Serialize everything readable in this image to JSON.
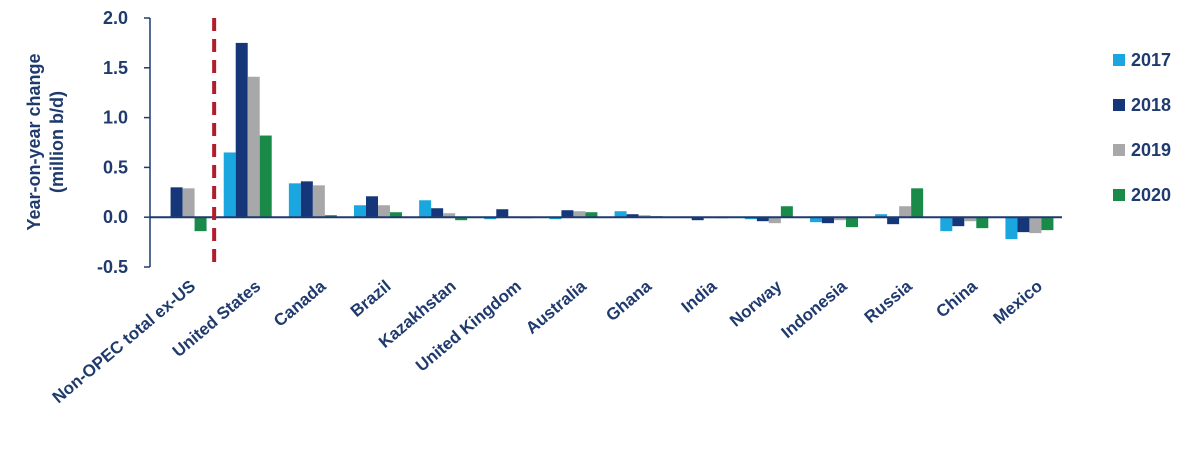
{
  "chart_data": {
    "type": "bar",
    "ylabel": "Year-on-year change",
    "ylabel_unit": "(million b/d)",
    "ylim": [
      -0.5,
      2.0
    ],
    "yticks": [
      "2.0",
      "1.5",
      "1.0",
      "0.5",
      "0.0",
      "-0.5"
    ],
    "ytick_values": [
      2.0,
      1.5,
      1.0,
      0.5,
      0.0,
      -0.5
    ],
    "categories": [
      "Non-OPEC total ex-US",
      "United States",
      "Canada",
      "Brazil",
      "Kazakhstan",
      "United Kingdom",
      "Australia",
      "Ghana",
      "India",
      "Norway",
      "Indonesia",
      "Russia",
      "China",
      "Mexico"
    ],
    "series": [
      {
        "name": "2017",
        "color": "#1aa6df",
        "values": [
          0.0,
          0.65,
          0.34,
          0.12,
          0.17,
          -0.02,
          -0.02,
          0.06,
          0.0,
          -0.02,
          -0.05,
          0.03,
          -0.14,
          -0.22
        ]
      },
      {
        "name": "2018",
        "color": "#15377a",
        "values": [
          0.3,
          1.75,
          0.36,
          0.21,
          0.09,
          0.08,
          0.07,
          0.03,
          -0.03,
          -0.04,
          -0.06,
          -0.07,
          -0.09,
          -0.15
        ]
      },
      {
        "name": "2019",
        "color": "#a8a8ab",
        "values": [
          0.29,
          1.41,
          0.32,
          0.12,
          0.04,
          0.0,
          0.06,
          0.02,
          -0.01,
          -0.06,
          -0.03,
          0.11,
          -0.04,
          -0.16
        ]
      },
      {
        "name": "2020",
        "color": "#1a8a49",
        "values": [
          -0.14,
          0.82,
          0.02,
          0.05,
          -0.03,
          -0.01,
          0.05,
          0.01,
          -0.01,
          0.11,
          -0.1,
          0.29,
          -0.11,
          -0.13
        ]
      }
    ],
    "legend_position": "right",
    "divider_after_category": 0,
    "divider_color": "#b01e2d",
    "grid": false
  }
}
